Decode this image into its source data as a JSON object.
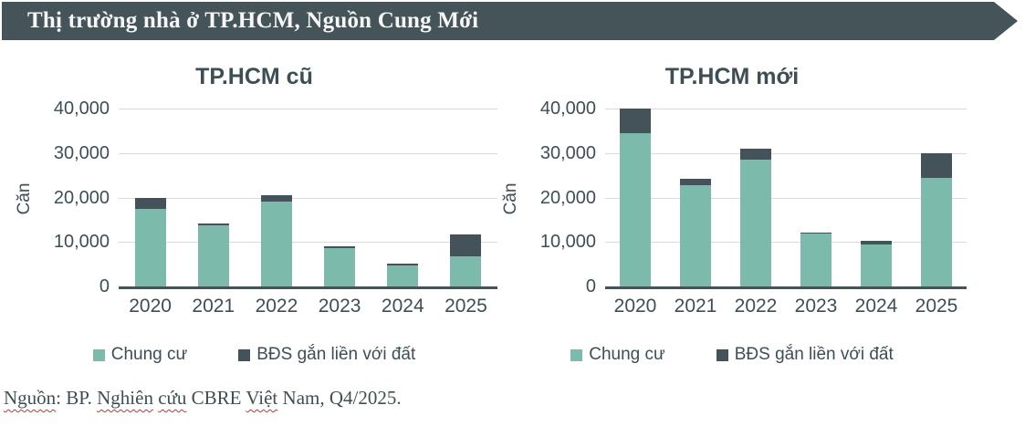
{
  "banner": {
    "title": "Thị trường nhà ở TP.HCM, Nguồn Cung Mới",
    "bg_color": "#455459",
    "text_color": "#F7F7F7"
  },
  "colors": {
    "teal": "#7CBAAB",
    "dark": "#44525A",
    "gridline": "#DADADA",
    "axis": "#44525A",
    "text": "#3E4E55",
    "spellcheck_red": "#D93025"
  },
  "chart_data": [
    {
      "type": "bar",
      "stacked": true,
      "title": "TP.HCM cũ",
      "ylabel": "Căn",
      "xlabel": "",
      "categories": [
        "2020",
        "2021",
        "2022",
        "2023",
        "2024",
        "2025"
      ],
      "series": [
        {
          "name": "Chung cư",
          "color_key": "teal",
          "values": [
            17500,
            13700,
            19000,
            8600,
            4800,
            6800
          ]
        },
        {
          "name": "BĐS gắn liền với đất",
          "color_key": "dark",
          "values": [
            2400,
            500,
            1500,
            400,
            400,
            5000
          ]
        }
      ],
      "totals": [
        19900,
        14200,
        20500,
        9000,
        5200,
        11800
      ],
      "ylim": [
        0,
        40000
      ],
      "yticks": [
        {
          "value": 0,
          "label": "0"
        },
        {
          "value": 10000,
          "label": "10,000"
        },
        {
          "value": 20000,
          "label": "20,000"
        },
        {
          "value": 30000,
          "label": "30,000"
        },
        {
          "value": 40000,
          "label": "40,000"
        }
      ],
      "grid": true,
      "legend_position": "bottom"
    },
    {
      "type": "bar",
      "stacked": true,
      "title": "TP.HCM mới",
      "ylabel": "Căn",
      "xlabel": "",
      "categories": [
        "2020",
        "2021",
        "2022",
        "2023",
        "2024",
        "2025"
      ],
      "series": [
        {
          "name": "Chung cư",
          "color_key": "teal",
          "values": [
            34400,
            22700,
            28600,
            11800,
            9500,
            24400
          ]
        },
        {
          "name": "BĐS gắn liền với đất",
          "color_key": "dark",
          "values": [
            5600,
            1500,
            2400,
            200,
            800,
            5600
          ]
        }
      ],
      "totals": [
        40000,
        24200,
        31000,
        12000,
        10300,
        30000
      ],
      "ylim": [
        0,
        40000
      ],
      "yticks": [
        {
          "value": 0,
          "label": "0"
        },
        {
          "value": 10000,
          "label": "10,000"
        },
        {
          "value": 20000,
          "label": "20,000"
        },
        {
          "value": 30000,
          "label": "30,000"
        },
        {
          "value": 40000,
          "label": "40,000"
        }
      ],
      "grid": true,
      "legend_position": "bottom"
    }
  ],
  "source": {
    "parts": [
      {
        "text": "Nguồn",
        "wavy": true
      },
      {
        "text": ": BP. ",
        "wavy": false
      },
      {
        "text": "Nghiên",
        "wavy": true
      },
      {
        "text": " ",
        "wavy": false
      },
      {
        "text": "cứu",
        "wavy": true
      },
      {
        "text": " CBRE ",
        "wavy": false
      },
      {
        "text": "Việt",
        "wavy": true
      },
      {
        "text": " Nam, Q4/2025.",
        "wavy": false
      }
    ]
  }
}
